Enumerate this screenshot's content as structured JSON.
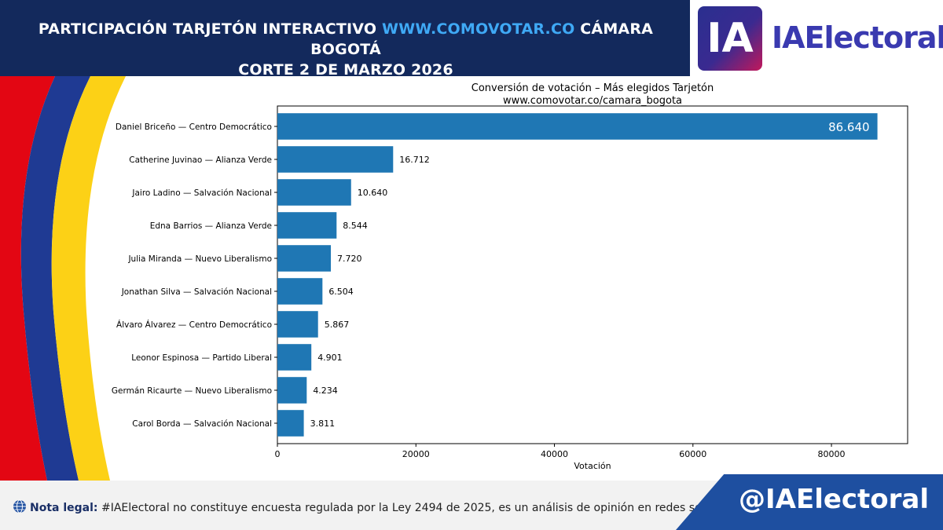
{
  "header": {
    "title_part1": "PARTICIPACIÓN TARJETÓN INTERACTIVO ",
    "title_url": "WWW.COMOVOTAR.CO",
    "title_part2": " CÁMARA BOGOTÁ",
    "subtitle": "CORTE 2 DE MARZO 2026",
    "url_color": "#3fa9f5",
    "background_color": "#13295c"
  },
  "logo": {
    "mark": "IA",
    "name": "IAElectoral"
  },
  "chart_data": {
    "type": "bar",
    "orientation": "horizontal",
    "title": "Conversión de votación – Más elegidos Tarjetón",
    "subtitle": "www.comovotar.co/camara_bogota",
    "xlabel": "Votación",
    "ylabel": "",
    "xlim": [
      0,
      91000
    ],
    "xticks": [
      0,
      20000,
      40000,
      60000,
      80000
    ],
    "grid": false,
    "bar_color": "#1f77b4",
    "categories": [
      "Daniel Briceño — Centro Democrático",
      "Catherine Juvinao — Alianza Verde",
      "Jairo Ladino — Salvación Nacional",
      "Edna Barrios — Alianza Verde",
      "Julia Miranda — Nuevo Liberalismo",
      "Jonathan Silva — Salvación Nacional",
      "Álvaro Álvarez — Centro Democrático",
      "Leonor Espinosa — Partido Liberal",
      "Germán Ricaurte — Nuevo Liberalismo",
      "Carol Borda — Salvación Nacional"
    ],
    "values": [
      86640,
      16712,
      10640,
      8544,
      7720,
      6504,
      5867,
      4901,
      4234,
      3811
    ],
    "value_labels": [
      "86.640",
      "16.712",
      "10.640",
      "8.544",
      "7.720",
      "6.504",
      "5.867",
      "4.901",
      "4.234",
      "3.811"
    ]
  },
  "footer": {
    "legal_label": "Nota legal:",
    "legal_text": " #IAElectoral no constituye encuesta regulada por la Ley 2494 de 2025, es un análisis de opinión en redes sociales con IA.",
    "handle": "@IAElectoral",
    "handle_bg": "#1e4fa0",
    "icon": "globe-icon"
  },
  "flag_colors": [
    "#e30613",
    "#1f3a93",
    "#fcd116"
  ]
}
